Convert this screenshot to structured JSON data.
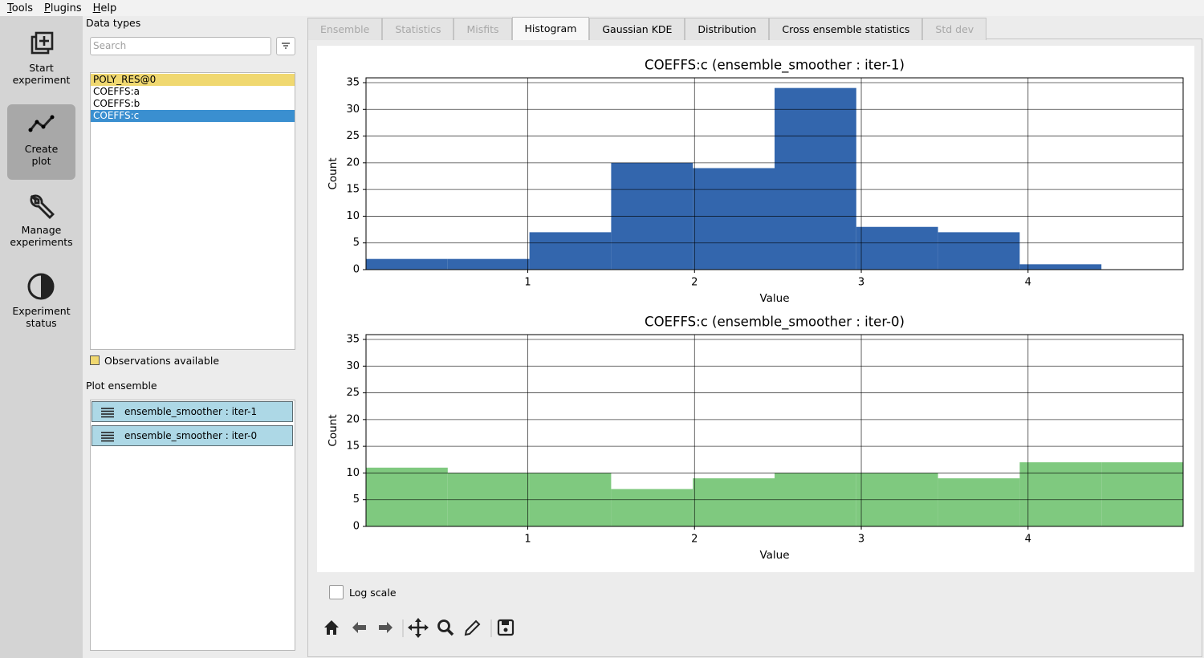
{
  "menu": [
    "Tools",
    "Plugins",
    "Help"
  ],
  "sidebar": {
    "buttons": [
      {
        "label": "Start\nexperiment",
        "selected": false
      },
      {
        "label": "Create\nplot",
        "selected": true
      },
      {
        "label": "Manage\nexperiments",
        "selected": false
      },
      {
        "label": "Experiment\nstatus",
        "selected": false
      }
    ]
  },
  "data_types": {
    "title": "Data types",
    "search_placeholder": "Search",
    "items": [
      {
        "label": "POLY_RES@0",
        "observations": true,
        "selected": false
      },
      {
        "label": "COEFFS:a",
        "observations": false,
        "selected": false
      },
      {
        "label": "COEFFS:b",
        "observations": false,
        "selected": false
      },
      {
        "label": "COEFFS:c",
        "observations": false,
        "selected": true
      }
    ],
    "legend": "Observations available"
  },
  "plot_ensemble": {
    "title": "Plot ensemble",
    "items": [
      "ensemble_smoother : iter-1",
      "ensemble_smoother : iter-0"
    ]
  },
  "tabs": [
    {
      "label": "Ensemble",
      "enabled": false,
      "selected": false
    },
    {
      "label": "Statistics",
      "enabled": false,
      "selected": false
    },
    {
      "label": "Misfits",
      "enabled": false,
      "selected": false
    },
    {
      "label": "Histogram",
      "enabled": true,
      "selected": true
    },
    {
      "label": "Gaussian KDE",
      "enabled": true,
      "selected": false
    },
    {
      "label": "Distribution",
      "enabled": true,
      "selected": false
    },
    {
      "label": "Cross ensemble statistics",
      "enabled": true,
      "selected": false
    },
    {
      "label": "Std dev",
      "enabled": false,
      "selected": false
    }
  ],
  "chart_data": [
    {
      "type": "histogram",
      "title": "COEFFS:c (ensemble_smoother : iter-1)",
      "x_label": "Value",
      "y_label": "Count",
      "color": "#3366ad",
      "bins": [
        0.03,
        0.52,
        1.01,
        1.5,
        1.99,
        2.48,
        2.97,
        3.46,
        3.95,
        4.44,
        4.93
      ],
      "values": [
        2,
        2,
        7,
        20,
        19,
        34,
        8,
        7,
        1,
        0
      ],
      "xlim": [
        0.03,
        4.93
      ],
      "xticks": [
        1,
        2,
        3,
        4
      ],
      "ylim": [
        0,
        35.9
      ],
      "yticks": [
        0,
        5,
        10,
        15,
        20,
        25,
        30,
        35
      ],
      "grid": true
    },
    {
      "type": "histogram",
      "title": "COEFFS:c (ensemble_smoother : iter-0)",
      "x_label": "Value",
      "y_label": "Count",
      "color": "#7fc97f",
      "bins": [
        0.03,
        0.52,
        1.01,
        1.5,
        1.99,
        2.48,
        2.97,
        3.46,
        3.95,
        4.44,
        4.93
      ],
      "values": [
        11,
        10,
        10,
        7,
        9,
        10,
        10,
        9,
        12,
        12
      ],
      "xlim": [
        0.03,
        4.93
      ],
      "xticks": [
        1,
        2,
        3,
        4
      ],
      "ylim": [
        0,
        35.9
      ],
      "yticks": [
        0,
        5,
        10,
        15,
        20,
        25,
        30,
        35
      ],
      "grid": true
    }
  ],
  "log_scale": {
    "label": "Log scale",
    "checked": false
  }
}
